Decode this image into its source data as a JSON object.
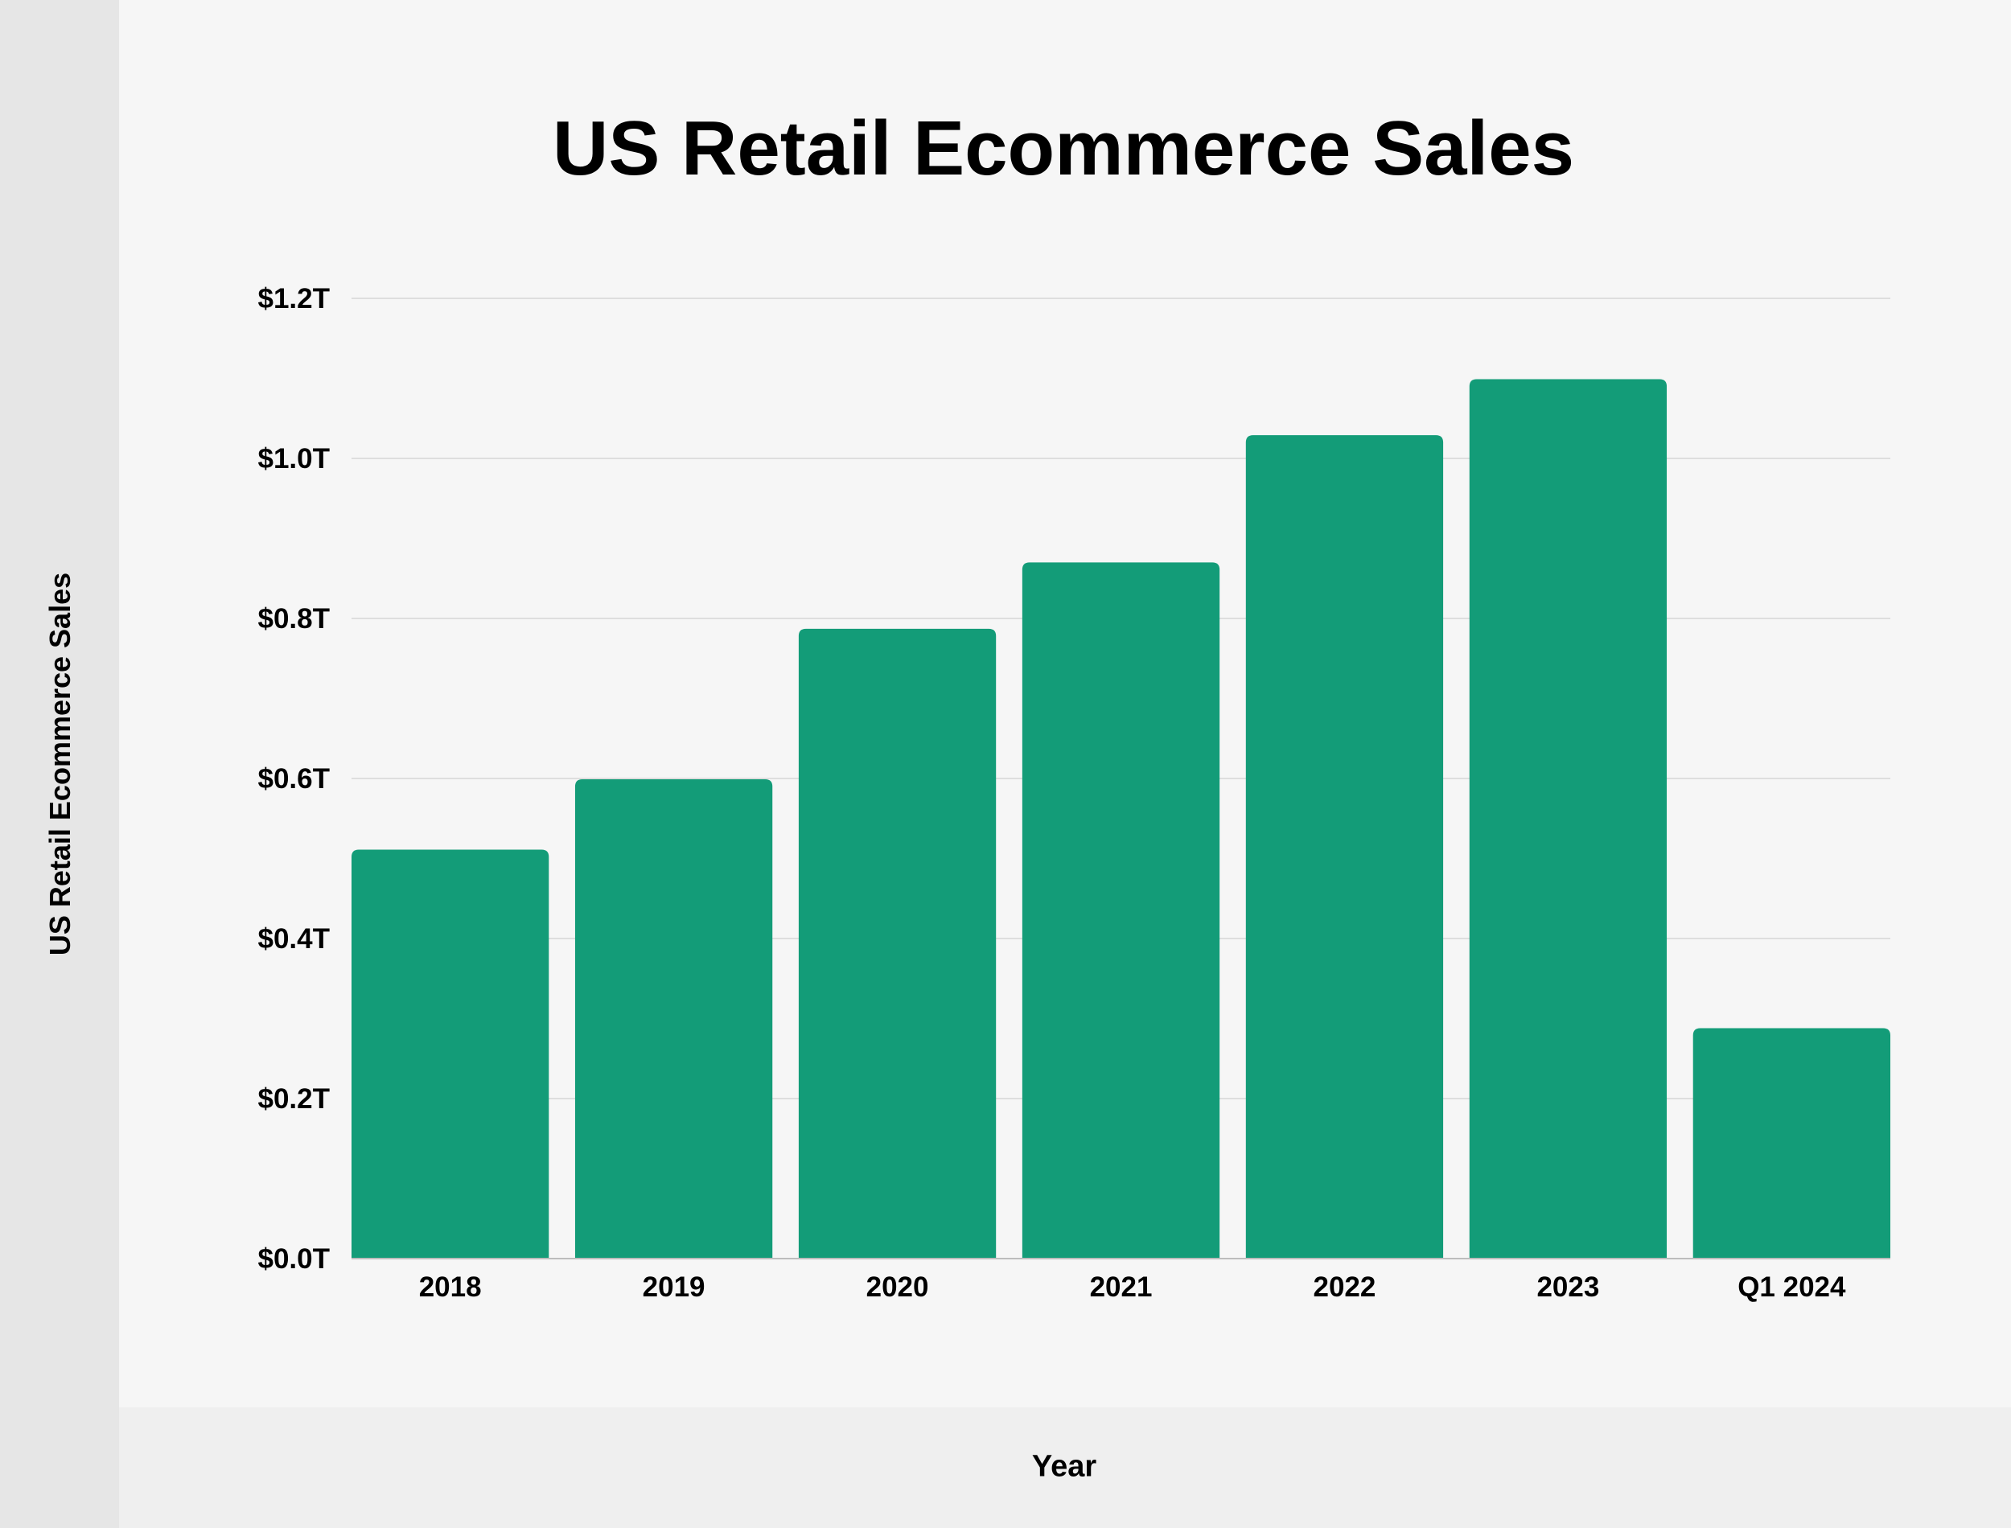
{
  "chart_data": {
    "type": "bar",
    "title": "US Retail Ecommerce Sales",
    "xlabel": "Year",
    "ylabel": "US Retail Ecommerce Sales",
    "categories": [
      "2018",
      "2019",
      "2020",
      "2021",
      "2022",
      "2023",
      "Q1 2024"
    ],
    "values": [
      0.511,
      0.599,
      0.787,
      0.87,
      1.029,
      1.099,
      0.288
    ],
    "unit": "trillion USD",
    "ylim": [
      0,
      1.2
    ],
    "yticks": [
      0,
      0.2,
      0.4,
      0.6,
      0.8,
      1.0,
      1.2
    ],
    "ytick_labels": [
      "$0.0T",
      "$0.2T",
      "$0.4T",
      "$0.6T",
      "$0.8T",
      "$1.0T",
      "$1.2T"
    ],
    "grid": "horizontal",
    "legend": "none",
    "colors": {
      "bar": "#139c78",
      "grid": "#d6d6d6",
      "background": "#f6f6f6"
    }
  }
}
